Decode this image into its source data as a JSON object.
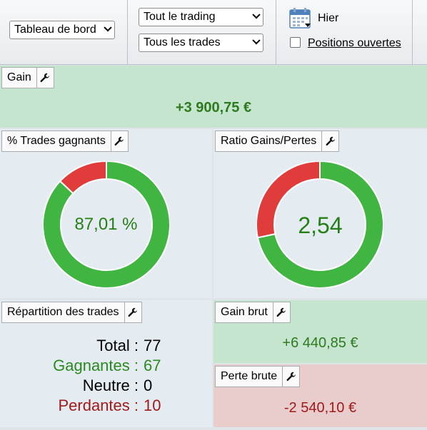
{
  "toolbar": {
    "view_select": "Tableau de bord",
    "scope_select": "Tout le trading",
    "trades_select": "Tous les trades",
    "period_label": "Hier",
    "open_positions_label": "Positions ouvertes"
  },
  "gain_panel": {
    "title": "Gain",
    "value": "+3 900,75 €"
  },
  "winrate_panel": {
    "title": "% Trades gagnants",
    "value_label": "87,01 %",
    "win_fraction": 0.8701
  },
  "ratio_panel": {
    "title": "Ratio Gains/Pertes",
    "value_label": "2,54",
    "gain_fraction": 0.7172
  },
  "distribution_panel": {
    "title": "Répartition des trades",
    "rows": [
      {
        "label": "Total",
        "value": "77",
        "color": "#000000"
      },
      {
        "label": "Gagnantes",
        "value": "67",
        "color": "#2a8a1e"
      },
      {
        "label": "Neutre",
        "value": "0",
        "color": "#000000"
      },
      {
        "label": "Perdantes",
        "value": "10",
        "color": "#a11a1a"
      }
    ]
  },
  "gross_gain_panel": {
    "title": "Gain brut",
    "value": "+6 440,85 €"
  },
  "gross_loss_panel": {
    "title": "Perte brute",
    "value": "-2 540,10 €"
  },
  "colors": {
    "win": "#41b542",
    "loss": "#e03c3c",
    "positive_text": "#2d7a1f",
    "negative_text": "#a11a1a"
  }
}
